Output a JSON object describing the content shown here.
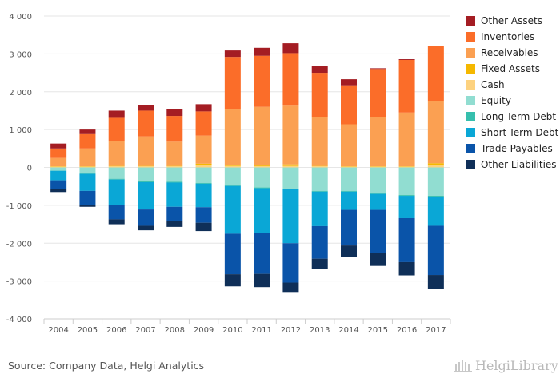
{
  "chart_data": {
    "type": "bar",
    "stacked": true,
    "categories": [
      "2004",
      "2005",
      "2006",
      "2007",
      "2008",
      "2009",
      "2010",
      "2011",
      "2012",
      "2013",
      "2014",
      "2015",
      "2016",
      "2017"
    ],
    "ylim": [
      -4000,
      4000
    ],
    "yticks": [
      4000,
      3000,
      2000,
      1000,
      0,
      -1000,
      -2000,
      -3000,
      -4000
    ],
    "ytick_labels": [
      "4 000",
      "3 000",
      "2 000",
      "1 000",
      "0",
      "-1 000",
      "-2 000",
      "-3 000",
      "-4 000"
    ],
    "grid": "horizontal",
    "legend_position": "right",
    "positive_series": [
      {
        "name": "Cash",
        "color": "#fdd27f",
        "values": [
          20,
          20,
          30,
          30,
          30,
          50,
          40,
          30,
          40,
          30,
          20,
          20,
          20,
          50
        ]
      },
      {
        "name": "Fixed Assets",
        "color": "#f5b800",
        "values": [
          10,
          10,
          10,
          10,
          10,
          50,
          20,
          20,
          40,
          10,
          10,
          10,
          10,
          60
        ]
      },
      {
        "name": "Receivables",
        "color": "#fba052",
        "values": [
          220,
          470,
          660,
          780,
          640,
          740,
          1480,
          1550,
          1550,
          1290,
          1110,
          1290,
          1420,
          1640
        ]
      },
      {
        "name": "Inventories",
        "color": "#fb6d29",
        "values": [
          250,
          380,
          610,
          680,
          680,
          640,
          1380,
          1350,
          1390,
          1170,
          1030,
          1280,
          1390,
          1450
        ]
      },
      {
        "name": "Other Assets",
        "color": "#a41d23",
        "values": [
          130,
          120,
          190,
          150,
          190,
          190,
          170,
          210,
          260,
          170,
          160,
          20,
          20,
          0
        ]
      }
    ],
    "negative_series": [
      {
        "name": "Equity",
        "color": "#91ddd1",
        "values": [
          -80,
          -160,
          -300,
          -370,
          -380,
          -410,
          -470,
          -530,
          -560,
          -620,
          -620,
          -680,
          -730,
          -750
        ]
      },
      {
        "name": "Long-Term Debt",
        "color": "#36bfad",
        "values": [
          -10,
          -10,
          -20,
          -20,
          -20,
          -20,
          -20,
          -20,
          -20,
          -20,
          -20,
          -20,
          -20,
          -20
        ]
      },
      {
        "name": "Short-Term Debt",
        "color": "#0aa7d6",
        "values": [
          -250,
          -450,
          -680,
          -720,
          -640,
          -620,
          -1260,
          -1170,
          -1420,
          -910,
          -480,
          -420,
          -590,
          -770
        ]
      },
      {
        "name": "Trade Payables",
        "color": "#0a54a9",
        "values": [
          -220,
          -370,
          -370,
          -430,
          -380,
          -410,
          -1070,
          -1090,
          -1040,
          -860,
          -940,
          -1140,
          -1160,
          -1300
        ]
      },
      {
        "name": "Other Liabilities",
        "color": "#0f2f58",
        "values": [
          -90,
          -50,
          -130,
          -120,
          -150,
          -220,
          -320,
          -350,
          -270,
          -270,
          -300,
          -340,
          -350,
          -360
        ]
      }
    ],
    "legend": [
      {
        "name": "Other Assets",
        "color": "#a41d23"
      },
      {
        "name": "Inventories",
        "color": "#fb6d29"
      },
      {
        "name": "Receivables",
        "color": "#fba052"
      },
      {
        "name": "Fixed Assets",
        "color": "#f5b800"
      },
      {
        "name": "Cash",
        "color": "#fdd27f"
      },
      {
        "name": "Equity",
        "color": "#91ddd1"
      },
      {
        "name": "Long-Term Debt",
        "color": "#36bfad"
      },
      {
        "name": "Short-Term Debt",
        "color": "#0aa7d6"
      },
      {
        "name": "Trade Payables",
        "color": "#0a54a9"
      },
      {
        "name": "Other Liabilities",
        "color": "#0f2f58"
      }
    ]
  },
  "footer": {
    "source": "Source: Company Data, Helgi Analytics",
    "brand": "HelgiLibrary"
  },
  "colors": {
    "grid": "#e6e6e6",
    "axis": "#cccccc",
    "text": "#555555"
  }
}
